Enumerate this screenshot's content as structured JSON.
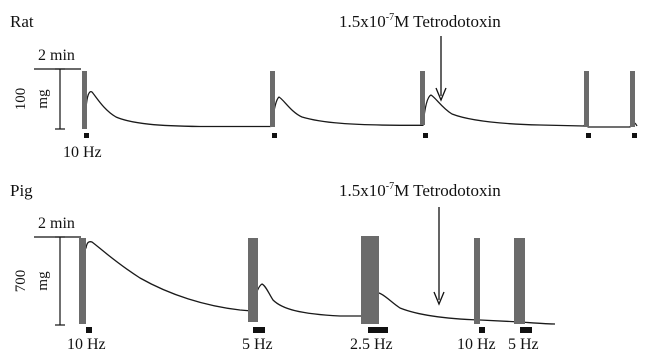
{
  "figure": {
    "panels": [
      {
        "species": "Rat",
        "treatment": {
          "concentration_base": "1.5x10",
          "concentration_exp": "-7",
          "unit_and_drug": "M Tetrodotoxin"
        },
        "time_scale": "2 min",
        "force_scale_value": "100",
        "force_scale_unit": "mg",
        "stimulus_labels": [
          "10 Hz"
        ]
      },
      {
        "species": "Pig",
        "treatment": {
          "concentration_base": "1.5x10",
          "concentration_exp": "-7",
          "unit_and_drug": "M Tetrodotoxin"
        },
        "time_scale": "2 min",
        "force_scale_value": "700",
        "force_scale_unit": "mg",
        "stimulus_labels": [
          "10 Hz",
          "5 Hz",
          "2.5 Hz",
          "10 Hz",
          "5 Hz"
        ]
      }
    ]
  }
}
